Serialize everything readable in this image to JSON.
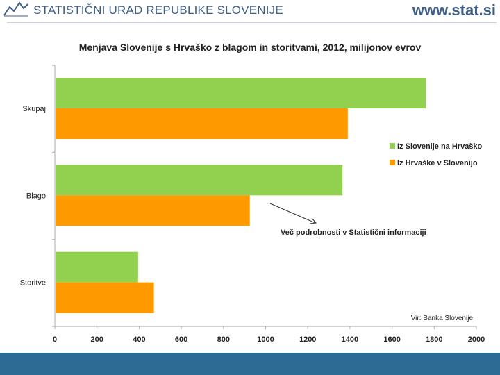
{
  "header": {
    "org_name": "STATISTIČNI URAD REPUBLIKE SLOVENIJE",
    "site_url": "www.stat.si"
  },
  "colors": {
    "brand": "#3f5f86",
    "footer": "#2e6b94",
    "green": "#92d050",
    "orange": "#ff9900"
  },
  "chart_data": {
    "type": "bar",
    "orientation": "horizontal",
    "title": "Menjava Slovenije s Hrvaško z blagom in storitvami, 2012, milijonov evrov",
    "categories": [
      "Skupaj",
      "Blago",
      "Storitve"
    ],
    "series": [
      {
        "name": "Iz Slovenije na Hrvaško",
        "color": "#92d050",
        "values": [
          1760,
          1365,
          395
        ]
      },
      {
        "name": "Iz Hrvaške v Slovenijo",
        "color": "#ff9900",
        "values": [
          1390,
          925,
          470
        ]
      }
    ],
    "xlim": [
      0,
      2000
    ],
    "ticks": [
      0,
      200,
      400,
      600,
      800,
      1000,
      1200,
      1400,
      1600,
      1800,
      2000
    ],
    "annotation": "Več podrobnosti v Statistični informaciji",
    "source": "Vir: Banka Slovenije",
    "legend_position": "right"
  }
}
